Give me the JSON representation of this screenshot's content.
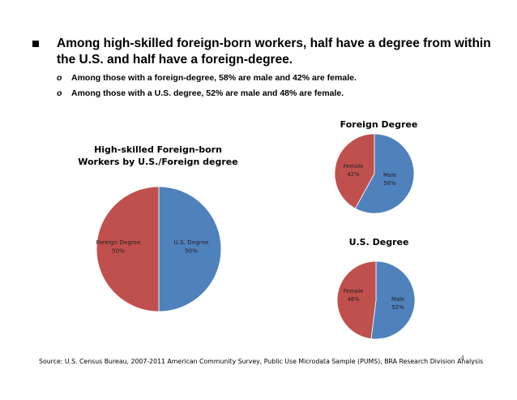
{
  "bullets": {
    "main": "Among high-skilled foreign-born workers, half have a degree from within the U.S. and half have a foreign-degree.",
    "sub": [
      {
        "marker": "o",
        "text": "Among those with a foreign-degree, 58% are male and 42% are female."
      },
      {
        "marker": "o",
        "text": "Among those with a U.S. degree, 52% are male and 48% are female."
      }
    ]
  },
  "chart_data": [
    {
      "type": "pie",
      "title": "High-skilled Foreign-born Workers by U.S./Foreign degree",
      "slices": [
        {
          "label": "U.S. Degree",
          "value": 50,
          "display": "50%",
          "color": "#4f81bd"
        },
        {
          "label": "Foreign Degree",
          "value": 50,
          "display": "50%",
          "color": "#c0504d"
        }
      ]
    },
    {
      "type": "pie",
      "title": "Foreign Degree",
      "slices": [
        {
          "label": "Male",
          "value": 58,
          "display": "58%",
          "color": "#4f81bd"
        },
        {
          "label": "Female",
          "value": 42,
          "display": "42%",
          "color": "#c0504d"
        }
      ]
    },
    {
      "type": "pie",
      "title": "U.S. Degree",
      "slices": [
        {
          "label": "Male",
          "value": 52,
          "display": "52%",
          "color": "#4f81bd"
        },
        {
          "label": "Female",
          "value": 48,
          "display": "48%",
          "color": "#c0504d"
        }
      ]
    }
  ],
  "source": "Source: U.S. Census Bureau, 2007-2011 American Community Survey, Public Use Microdata Sample (PUMS), BRA Research Division Analysis",
  "page_number": "4"
}
